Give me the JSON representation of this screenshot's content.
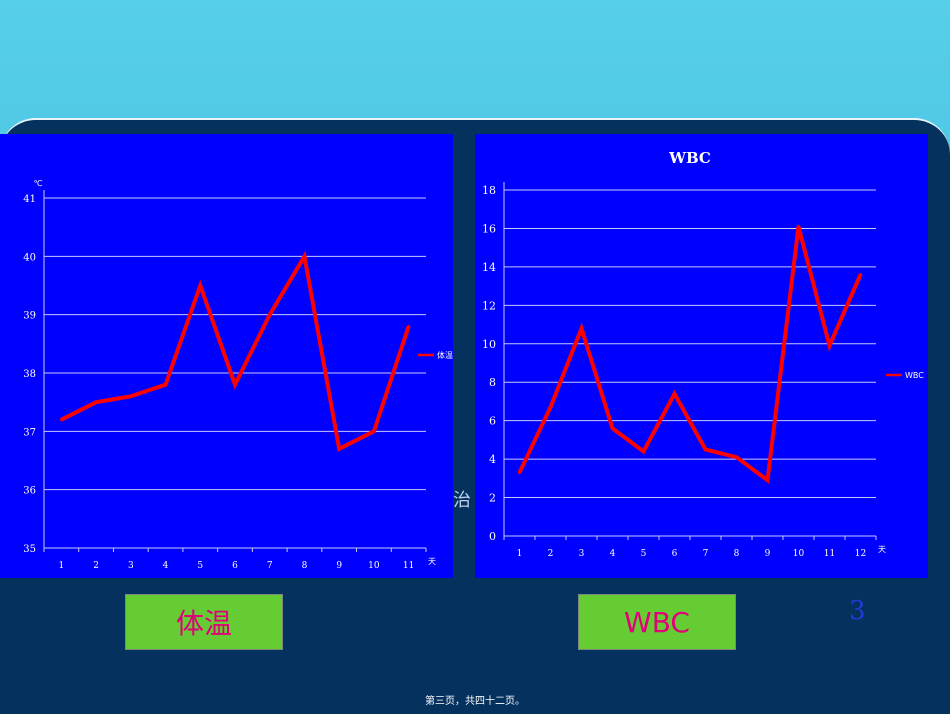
{
  "chart_data": [
    {
      "type": "line",
      "title": "",
      "x": [
        1,
        2,
        3,
        4,
        5,
        6,
        7,
        8,
        9,
        10,
        11
      ],
      "series": [
        {
          "name": "体温",
          "values": [
            37.2,
            37.5,
            37.6,
            37.8,
            39.5,
            37.8,
            39.0,
            40.0,
            36.7,
            37.0,
            38.8
          ]
        }
      ],
      "ylim": [
        35,
        41
      ],
      "yticks": [
        35,
        36,
        37,
        38,
        39,
        40,
        41
      ],
      "y_axis_mark": "℃",
      "x_axis_mark": "天",
      "grid": true,
      "legend": "right",
      "line_color": "#ff0000"
    },
    {
      "type": "line",
      "title": "WBC",
      "x": [
        1,
        2,
        3,
        4,
        5,
        6,
        7,
        8,
        9,
        10,
        11,
        12
      ],
      "series": [
        {
          "name": "WBC",
          "values": [
            3.3,
            6.7,
            10.8,
            5.6,
            4.4,
            7.4,
            4.5,
            4.1,
            2.9,
            16.1,
            9.9,
            13.6
          ]
        }
      ],
      "ylim": [
        0,
        18
      ],
      "yticks": [
        0,
        2,
        4,
        6,
        8,
        10,
        12,
        14,
        16,
        18
      ],
      "x_axis_mark": "天",
      "grid": true,
      "legend": "right",
      "line_color": "#ff0000"
    }
  ],
  "labels": {
    "temp": "体温",
    "wbc": "WBC"
  },
  "slide_number": "3",
  "footer": "第三页，共四十二页。",
  "stray_text": "治"
}
